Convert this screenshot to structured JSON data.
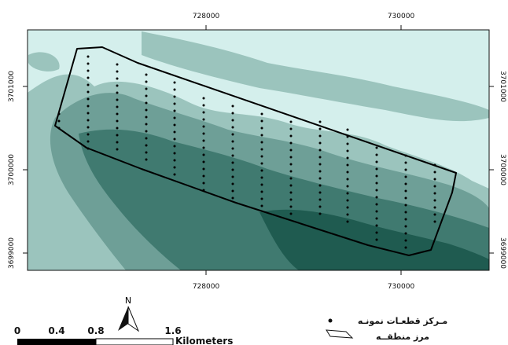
{
  "map": {
    "colors": {
      "background": "#d4efec",
      "zone1": "#9bc4bd",
      "zone2": "#6e9f97",
      "zone3": "#407a70",
      "zone4": "#1f5b50",
      "boundary": "#000000",
      "points": "#000000"
    },
    "x_ticks": [
      "728000",
      "730000"
    ],
    "y_ticks": [
      "3701000",
      "3700000",
      "3699000"
    ]
  },
  "north_arrow": {
    "label": "N"
  },
  "scale_bar": {
    "labels": [
      "0",
      "0.4",
      "0.8",
      "1.6"
    ],
    "unit": "Kilometers"
  },
  "legend": {
    "items": [
      {
        "label": "مـرکز قطعـات نمونـه",
        "symbol": "dot-icon"
      },
      {
        "label": "مرز منطقــه",
        "symbol": "polygon-icon"
      }
    ]
  }
}
